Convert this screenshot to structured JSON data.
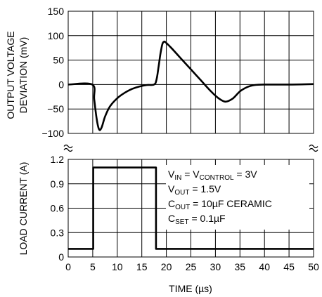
{
  "chart_data": [
    {
      "panel": "top",
      "type": "line",
      "ylabel_line1": "OUTPUT VOLTAGE",
      "ylabel_line2": "DEVIATION (mV)",
      "ylim": [
        -100,
        150
      ],
      "yticks": [
        "150",
        "100",
        "50",
        "0",
        "−50",
        "−100"
      ],
      "ytick_values": [
        150,
        100,
        50,
        0,
        -50,
        -100
      ],
      "xlim": [
        0,
        50
      ],
      "grid": true,
      "series": [
        {
          "x": [
            0,
            4.9,
            5.3,
            5.8,
            6.3,
            6.8,
            7.5,
            8.5,
            10,
            11.5,
            13,
            14.5,
            16,
            17.5,
            18,
            18.4,
            18.8,
            19.2,
            19.6,
            20,
            21,
            23,
            25,
            27,
            29,
            30.5,
            32,
            33.5,
            35,
            36.5,
            38,
            40,
            45,
            50
          ],
          "y": [
            0,
            0,
            -30,
            -70,
            -92,
            -88,
            -66,
            -45,
            -28,
            -17,
            -9,
            -4,
            -1,
            0,
            10,
            35,
            63,
            83,
            88,
            85,
            75,
            53,
            31,
            9,
            -13,
            -27,
            -35,
            -29,
            -14,
            -5,
            -1,
            0,
            0,
            1
          ]
        }
      ]
    },
    {
      "panel": "bottom",
      "type": "line",
      "ylabel": "LOAD CURRENT (A)",
      "xlabel": "TIME (µs)",
      "ylim": [
        0,
        1.2
      ],
      "yticks": [
        "1.2",
        "0.9",
        "0.6",
        "0.3",
        "0"
      ],
      "ytick_values": [
        1.2,
        0.9,
        0.6,
        0.3,
        0
      ],
      "xlim": [
        0,
        50
      ],
      "xticks": [
        "0",
        "5",
        "10",
        "15",
        "20",
        "25",
        "30",
        "35",
        "40",
        "45",
        "50"
      ],
      "xtick_values": [
        0,
        5,
        10,
        15,
        20,
        25,
        30,
        35,
        40,
        45,
        50
      ],
      "grid": true,
      "series": [
        {
          "x": [
            0,
            5.1,
            5.1,
            17.9,
            17.9,
            50
          ],
          "y": [
            0.1,
            0.1,
            1.1,
            1.1,
            0.1,
            0.1
          ]
        }
      ],
      "annotations": [
        {
          "parts": [
            [
              "V",
              ""
            ],
            [
              "IN",
              "sub"
            ],
            [
              " = V",
              ""
            ],
            [
              "CONTROL",
              "sub"
            ],
            [
              " = 3V",
              ""
            ]
          ]
        },
        {
          "parts": [
            [
              "V",
              ""
            ],
            [
              "OUT",
              "sub"
            ],
            [
              " = 1.5V",
              ""
            ]
          ]
        },
        {
          "parts": [
            [
              "C",
              ""
            ],
            [
              "OUT",
              "sub"
            ],
            [
              " = 10µF CERAMIC",
              ""
            ]
          ]
        },
        {
          "parts": [
            [
              "C",
              ""
            ],
            [
              "SET",
              "sub"
            ],
            [
              " = 0.1µF",
              ""
            ]
          ]
        }
      ]
    }
  ]
}
